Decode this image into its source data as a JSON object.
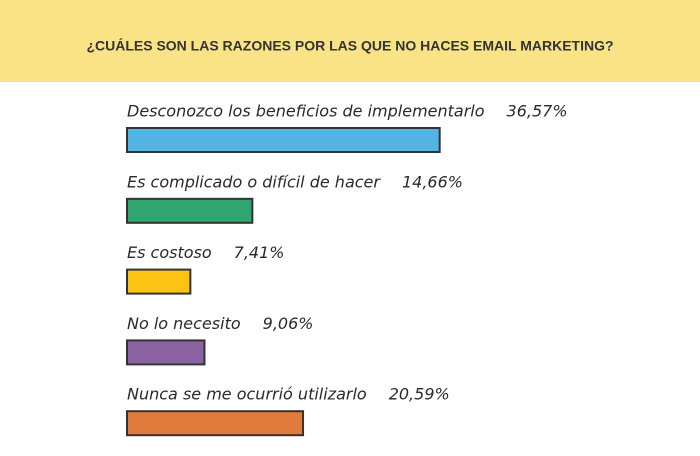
{
  "chart_data": {
    "type": "bar",
    "orientation": "horizontal",
    "title": "¿CUÁLES SON LAS RAZONES POR LAS QUE NO HACES EMAIL MARKETING?",
    "categories": [
      "Desconozco los beneficios de implementarlo",
      "Es complicado o difícil de hacer",
      "Es costoso",
      "No lo necesito",
      "Nunca se me ocurrió utilizarlo"
    ],
    "values": [
      36.57,
      14.66,
      7.41,
      9.06,
      20.59
    ],
    "value_labels": [
      "36,57%",
      "14,66%",
      "7,41%",
      "9,06%",
      "20,59%"
    ],
    "colors": [
      "#52b4e4",
      "#2fa56f",
      "#fcc313",
      "#8a62a2",
      "#e07b3d"
    ]
  }
}
